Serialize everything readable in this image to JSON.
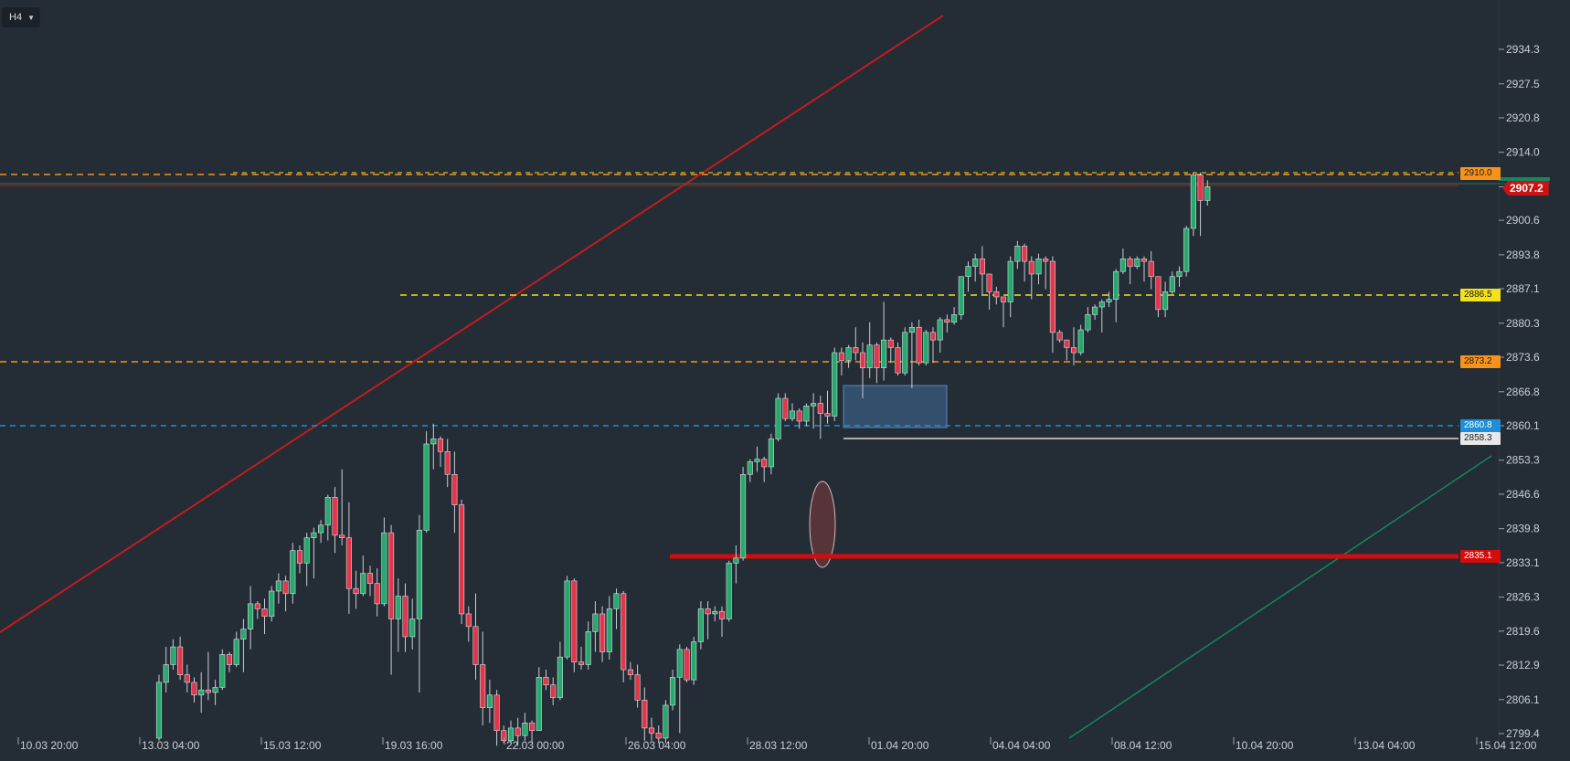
{
  "toolbar": {
    "timeframe": "H4"
  },
  "price_labels": {
    "level_2910": "2910.0",
    "current": "2907.2",
    "level_2886": "2886.5",
    "level_2873": "2873.2",
    "level_2860": "2860.8",
    "level_2858": "2858.3",
    "level_2835": "2835.1"
  },
  "colors": {
    "background": "#242c35",
    "up": "#26a96c",
    "down": "#e0374a",
    "level_orange": "#f7931a",
    "level_yellow": "#f2e21c",
    "level_blue": "#1e8fd6",
    "level_white": "#d8d8d8",
    "support_red": "#d40c0c",
    "current_red": "#c81414"
  },
  "chart_data": {
    "type": "candlestick",
    "y_axis": {
      "ticks": [
        "2934.3",
        "2927.5",
        "2920.8",
        "2914.0",
        "2907.2",
        "2900.6",
        "2893.8",
        "2887.1",
        "2880.3",
        "2873.6",
        "2866.8",
        "2860.1",
        "2853.3",
        "2846.6",
        "2839.8",
        "2833.1",
        "2826.3",
        "2819.6",
        "2812.9",
        "2806.1",
        "2799.4"
      ],
      "range": [
        2798,
        2942
      ]
    },
    "x_axis": {
      "ticks": [
        "10.03 20:00",
        "13.03 04:00",
        "15.03 12:00",
        "19.03 16:00",
        "22.03 00:00",
        "26.03 04:00",
        "28.03 12:00",
        "01.04 20:00",
        "04.04 04:00",
        "08.04 12:00",
        "10.04 20:00",
        "13.04 04:00",
        "15.04 12:00"
      ]
    },
    "horizontal_levels": [
      {
        "price": 2910.0,
        "style": "dashed",
        "color": "orange"
      },
      {
        "price": 2886.5,
        "style": "dashed",
        "color": "yellow"
      },
      {
        "price": 2873.2,
        "style": "dashed",
        "color": "orange"
      },
      {
        "price": 2860.8,
        "style": "dashed",
        "color": "blue"
      },
      {
        "price": 2858.3,
        "style": "solid",
        "color": "white"
      },
      {
        "price": 2835.1,
        "style": "solid-thick",
        "color": "red"
      },
      {
        "price": 2907.2,
        "style": "solid",
        "color": "current"
      }
    ],
    "candles": [
      [
        2798.5,
        2809.5,
        2798.0,
        2811.0
      ],
      [
        2809.5,
        2813.0,
        2807.5,
        2816.5
      ],
      [
        2813.0,
        2816.5,
        2812.0,
        2818.0
      ],
      [
        2816.5,
        2811.0,
        2810.0,
        2818.5
      ],
      [
        2811.0,
        2809.5,
        2807.5,
        2813.0
      ],
      [
        2809.5,
        2807.0,
        2805.5,
        2810.5
      ],
      [
        2807.0,
        2808.0,
        2803.5,
        2811.5
      ],
      [
        2808.0,
        2807.5,
        2806.0,
        2815.5
      ],
      [
        2807.5,
        2808.5,
        2805.0,
        2810.0
      ],
      [
        2808.5,
        2815.0,
        2808.0,
        2816.0
      ],
      [
        2815.0,
        2813.0,
        2811.5,
        2815.5
      ],
      [
        2813.0,
        2818.0,
        2812.5,
        2819.5
      ],
      [
        2818.0,
        2820.0,
        2811.5,
        2822.0
      ],
      [
        2820.0,
        2825.0,
        2816.0,
        2828.5
      ],
      [
        2825.0,
        2824.0,
        2822.0,
        2825.5
      ],
      [
        2824.0,
        2822.5,
        2819.0,
        2826.0
      ],
      [
        2822.5,
        2827.5,
        2821.5,
        2828.5
      ],
      [
        2827.5,
        2829.5,
        2825.0,
        2831.0
      ],
      [
        2829.5,
        2827.0,
        2823.5,
        2830.5
      ],
      [
        2827.0,
        2835.5,
        2825.0,
        2837.0
      ],
      [
        2835.5,
        2833.0,
        2831.0,
        2836.5
      ],
      [
        2833.0,
        2838.0,
        2828.5,
        2839.0
      ],
      [
        2838.0,
        2839.0,
        2830.0,
        2840.0
      ],
      [
        2839.0,
        2840.5,
        2837.0,
        2841.5
      ],
      [
        2840.5,
        2846.0,
        2837.5,
        2846.5
      ],
      [
        2846.0,
        2838.5,
        2835.0,
        2848.0
      ],
      [
        2838.5,
        2838.0,
        2836.5,
        2851.5
      ],
      [
        2838.0,
        2828.0,
        2823.0,
        2845.0
      ],
      [
        2828.0,
        2827.0,
        2824.0,
        2831.5
      ],
      [
        2827.0,
        2831.0,
        2826.5,
        2834.5
      ],
      [
        2831.0,
        2829.0,
        2826.5,
        2832.5
      ],
      [
        2829.0,
        2825.0,
        2822.5,
        2832.0
      ],
      [
        2825.0,
        2839.0,
        2824.5,
        2842.0
      ],
      [
        2839.0,
        2822.0,
        2811.0,
        2840.5
      ],
      [
        2822.0,
        2826.5,
        2815.5,
        2830.0
      ],
      [
        2826.5,
        2818.5,
        2815.5,
        2829.0
      ],
      [
        2818.5,
        2822.0,
        2816.0,
        2826.0
      ],
      [
        2822.0,
        2839.5,
        2807.5,
        2842.5
      ],
      [
        2839.5,
        2856.5,
        2839.0,
        2859.0
      ],
      [
        2856.5,
        2857.5,
        2851.5,
        2860.5
      ],
      [
        2857.5,
        2855.0,
        2852.0,
        2858.0
      ],
      [
        2855.0,
        2850.5,
        2848.0,
        2857.5
      ],
      [
        2850.5,
        2844.5,
        2839.0,
        2855.0
      ],
      [
        2844.5,
        2823.0,
        2821.0,
        2845.5
      ],
      [
        2823.0,
        2820.5,
        2817.5,
        2824.5
      ],
      [
        2820.5,
        2813.0,
        2810.0,
        2827.0
      ],
      [
        2813.0,
        2804.5,
        2801.0,
        2819.5
      ],
      [
        2804.5,
        2807.0,
        2801.5,
        2810.0
      ],
      [
        2807.0,
        2800.0,
        2797.0,
        2808.0
      ],
      [
        2800.0,
        2798.0,
        2797.5,
        2801.0
      ],
      [
        2798.0,
        2800.5,
        2797.5,
        2802.0
      ],
      [
        2800.5,
        2799.0,
        2797.0,
        2802.5
      ],
      [
        2799.0,
        2801.5,
        2798.0,
        2803.5
      ],
      [
        2801.5,
        2800.0,
        2797.5,
        2802.0
      ],
      [
        2800.0,
        2810.5,
        2800.0,
        2812.5
      ],
      [
        2810.5,
        2809.0,
        2808.0,
        2812.0
      ],
      [
        2809.0,
        2806.5,
        2805.0,
        2810.5
      ],
      [
        2806.5,
        2814.5,
        2806.0,
        2817.5
      ],
      [
        2814.5,
        2829.5,
        2814.0,
        2830.5
      ],
      [
        2829.5,
        2813.5,
        2811.5,
        2830.0
      ],
      [
        2813.5,
        2813.0,
        2812.0,
        2816.5
      ],
      [
        2813.0,
        2819.5,
        2812.0,
        2821.5
      ],
      [
        2819.5,
        2823.0,
        2815.5,
        2825.5
      ],
      [
        2823.0,
        2815.5,
        2813.5,
        2824.5
      ],
      [
        2815.5,
        2824.0,
        2814.0,
        2826.5
      ],
      [
        2824.0,
        2827.0,
        2820.0,
        2828.0
      ],
      [
        2827.0,
        2812.0,
        2809.5,
        2827.5
      ],
      [
        2812.0,
        2811.0,
        2810.0,
        2813.5
      ],
      [
        2811.0,
        2806.0,
        2804.5,
        2813.0
      ],
      [
        2806.0,
        2800.5,
        2798.0,
        2808.5
      ],
      [
        2800.5,
        2799.5,
        2798.0,
        2802.5
      ],
      [
        2799.5,
        2798.5,
        2797.5,
        2801.0
      ],
      [
        2798.5,
        2805.0,
        2797.5,
        2806.0
      ],
      [
        2805.0,
        2810.5,
        2804.0,
        2812.0
      ],
      [
        2810.5,
        2816.0,
        2799.5,
        2817.0
      ],
      [
        2816.0,
        2810.0,
        2809.5,
        2816.5
      ],
      [
        2810.0,
        2817.5,
        2809.0,
        2818.5
      ],
      [
        2817.5,
        2824.0,
        2816.0,
        2825.5
      ],
      [
        2824.0,
        2823.0,
        2818.0,
        2825.5
      ],
      [
        2823.0,
        2823.5,
        2821.5,
        2824.5
      ],
      [
        2823.5,
        2822.0,
        2818.5,
        2824.5
      ],
      [
        2822.0,
        2833.0,
        2821.5,
        2833.5
      ],
      [
        2833.0,
        2834.0,
        2829.0,
        2836.5
      ],
      [
        2834.0,
        2850.5,
        2833.5,
        2852.0
      ],
      [
        2850.5,
        2853.0,
        2849.0,
        2853.5
      ],
      [
        2853.0,
        2853.5,
        2851.0,
        2856.0
      ],
      [
        2853.5,
        2852.0,
        2849.0,
        2854.0
      ],
      [
        2852.0,
        2857.5,
        2850.5,
        2858.5
      ],
      [
        2857.5,
        2865.5,
        2857.0,
        2866.5
      ],
      [
        2865.5,
        2861.5,
        2861.0,
        2866.5
      ],
      [
        2861.5,
        2863.0,
        2861.0,
        2864.5
      ],
      [
        2863.0,
        2861.0,
        2859.5,
        2863.5
      ],
      [
        2861.0,
        2864.0,
        2860.0,
        2864.5
      ],
      [
        2864.0,
        2864.5,
        2859.5,
        2866.5
      ],
      [
        2864.5,
        2862.5,
        2857.5,
        2866.0
      ],
      [
        2862.5,
        2862.0,
        2860.5,
        2867.0
      ],
      [
        2862.0,
        2874.5,
        2861.0,
        2875.5
      ],
      [
        2874.5,
        2873.0,
        2870.0,
        2875.5
      ],
      [
        2873.0,
        2875.5,
        2871.5,
        2876.0
      ],
      [
        2875.5,
        2874.5,
        2873.0,
        2879.5
      ],
      [
        2874.5,
        2871.5,
        2865.5,
        2876.5
      ],
      [
        2871.5,
        2876.0,
        2869.5,
        2880.5
      ],
      [
        2876.0,
        2871.5,
        2868.5,
        2876.5
      ],
      [
        2871.5,
        2877.0,
        2869.0,
        2884.5
      ],
      [
        2877.0,
        2875.5,
        2872.5,
        2877.5
      ],
      [
        2875.5,
        2870.5,
        2870.0,
        2876.5
      ],
      [
        2870.5,
        2878.5,
        2870.0,
        2879.5
      ],
      [
        2878.5,
        2879.5,
        2867.5,
        2880.5
      ],
      [
        2879.5,
        2872.5,
        2872.0,
        2881.0
      ],
      [
        2872.5,
        2878.5,
        2872.0,
        2879.0
      ],
      [
        2878.5,
        2877.0,
        2872.5,
        2879.5
      ],
      [
        2877.0,
        2881.0,
        2874.5,
        2881.5
      ],
      [
        2881.0,
        2880.5,
        2878.5,
        2882.0
      ],
      [
        2880.5,
        2882.0,
        2880.0,
        2883.5
      ],
      [
        2882.0,
        2889.5,
        2881.0,
        2889.5
      ],
      [
        2889.5,
        2891.5,
        2886.5,
        2892.5
      ],
      [
        2891.5,
        2893.0,
        2888.5,
        2894.0
      ],
      [
        2893.0,
        2890.0,
        2886.0,
        2895.5
      ],
      [
        2890.0,
        2886.5,
        2883.0,
        2890.0
      ],
      [
        2886.5,
        2885.5,
        2884.0,
        2887.5
      ],
      [
        2885.5,
        2884.5,
        2879.5,
        2885.5
      ],
      [
        2884.5,
        2892.5,
        2881.5,
        2893.5
      ],
      [
        2892.5,
        2895.5,
        2891.0,
        2896.5
      ],
      [
        2895.5,
        2892.5,
        2888.5,
        2896.0
      ],
      [
        2892.5,
        2890.0,
        2885.0,
        2893.5
      ],
      [
        2890.0,
        2893.0,
        2888.0,
        2894.0
      ],
      [
        2893.0,
        2892.5,
        2887.0,
        2893.5
      ],
      [
        2892.5,
        2878.5,
        2874.5,
        2893.5
      ],
      [
        2878.5,
        2877.0,
        2876.5,
        2879.0
      ],
      [
        2877.0,
        2875.5,
        2873.0,
        2877.0
      ],
      [
        2875.5,
        2874.5,
        2872.0,
        2879.5
      ],
      [
        2874.5,
        2879.0,
        2874.0,
        2880.0
      ],
      [
        2879.0,
        2882.0,
        2878.5,
        2883.5
      ],
      [
        2882.0,
        2883.5,
        2881.0,
        2884.0
      ],
      [
        2883.5,
        2884.5,
        2878.5,
        2885.0
      ],
      [
        2884.5,
        2885.0,
        2883.5,
        2886.5
      ],
      [
        2885.0,
        2890.5,
        2880.5,
        2891.0
      ],
      [
        2890.5,
        2893.0,
        2890.0,
        2895.0
      ],
      [
        2893.0,
        2891.5,
        2888.0,
        2893.5
      ],
      [
        2891.5,
        2893.0,
        2891.0,
        2893.5
      ],
      [
        2893.0,
        2892.5,
        2888.5,
        2893.5
      ],
      [
        2892.5,
        2889.5,
        2887.0,
        2894.5
      ],
      [
        2889.5,
        2883.0,
        2881.5,
        2889.5
      ],
      [
        2883.0,
        2886.5,
        2881.5,
        2888.5
      ],
      [
        2886.5,
        2889.5,
        2886.0,
        2890.5
      ],
      [
        2889.5,
        2890.5,
        2887.5,
        2891.5
      ],
      [
        2890.5,
        2899.0,
        2889.5,
        2899.5
      ],
      [
        2899.0,
        2909.5,
        2897.5,
        2910.0
      ],
      [
        2909.5,
        2904.5,
        2897.5,
        2910.0
      ],
      [
        2904.5,
        2907.2,
        2903.5,
        2908.5
      ]
    ]
  }
}
